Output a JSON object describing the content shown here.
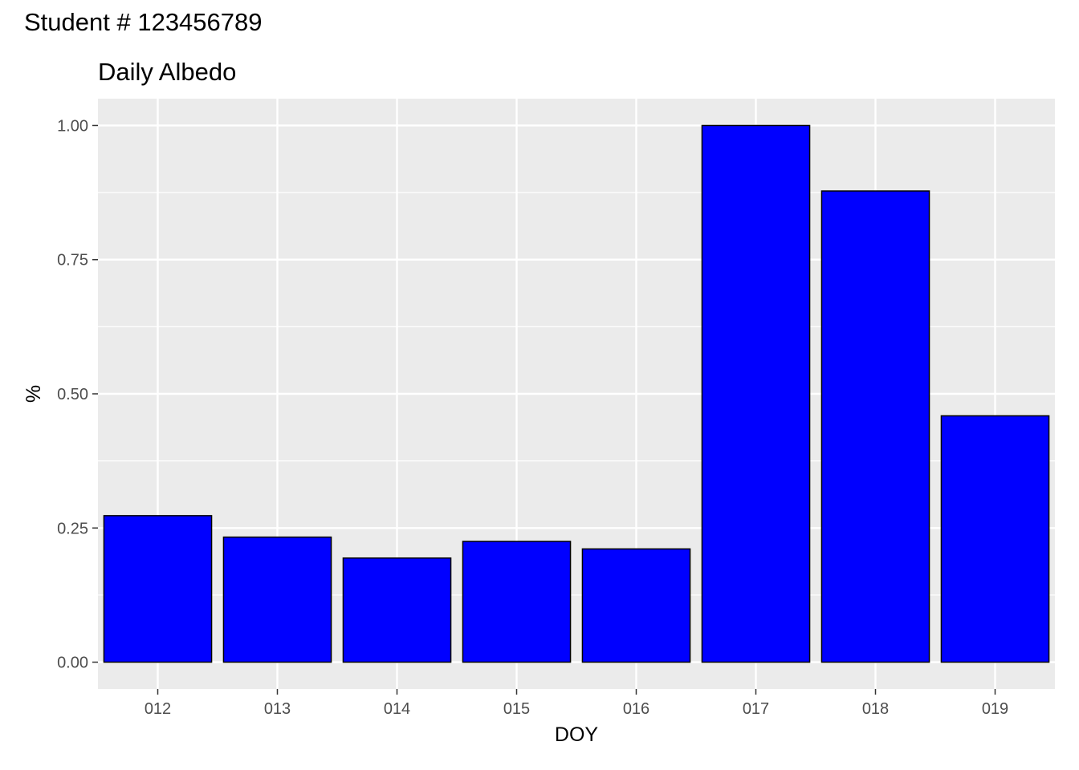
{
  "tag": "Student # 123456789",
  "chart_data": {
    "type": "bar",
    "title": "Daily Albedo",
    "xlabel": "DOY",
    "ylabel": "%",
    "categories": [
      "012",
      "013",
      "014",
      "015",
      "016",
      "017",
      "018",
      "019"
    ],
    "values": [
      0.273,
      0.233,
      0.194,
      0.225,
      0.211,
      1.0,
      0.878,
      0.459
    ],
    "yticks": [
      0.0,
      0.25,
      0.5,
      0.75,
      1.0
    ],
    "ytick_labels": [
      "0.00",
      "0.25",
      "0.50",
      "0.75",
      "1.00"
    ],
    "ylim": [
      -0.05,
      1.05
    ],
    "grid": true,
    "colors": {
      "bar_fill": "#0000ff",
      "bar_stroke": "#000000",
      "panel": "#ebebeb",
      "grid": "#ffffff"
    }
  }
}
